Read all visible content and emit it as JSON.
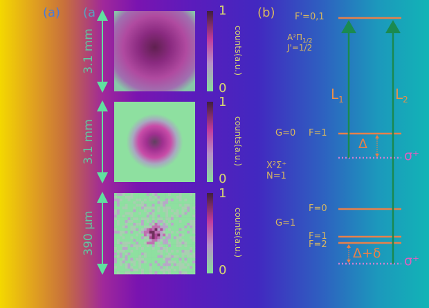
{
  "panel_a": {
    "labels": [
      "(a)",
      "(a"
    ],
    "rows": [
      {
        "scale": "3.1 mm",
        "cb_max": "1",
        "cb_min": "0",
        "cb_label": "counts(a.u.)"
      },
      {
        "scale": "3.1 mm",
        "cb_max": "1",
        "cb_min": "0",
        "cb_label": "counts(a.u.)"
      },
      {
        "scale": "390 μm",
        "cb_max": "1",
        "cb_min": "0",
        "cb_label": "counts(a.u.)"
      }
    ]
  },
  "panel_b": {
    "label": "(b)",
    "excited_level": "F'=0,1",
    "excited_state": "A²Π",
    "excited_state_sub": "1/2",
    "excited_j": "J'=1/2",
    "ground_state": "X²Σ⁺",
    "ground_n": "N=1",
    "g0": "G=0",
    "g0_f1": "F=1",
    "g1": "G=1",
    "g1_f0": "F=0",
    "g1_f1": "F=1",
    "g1_f2": "F=2",
    "laser1": "L",
    "laser1_sub": "1",
    "laser2": "L",
    "laser2_sub": "2",
    "detuning1": "Δ",
    "detuning2": "Δ+δ",
    "polarization": "σ⁺"
  },
  "colors": {
    "level": "#e8804a",
    "laser": "#1a8a50",
    "sigma": "#e060c0",
    "scale_arrow": "#60e0a0",
    "text": "#d8b860"
  }
}
